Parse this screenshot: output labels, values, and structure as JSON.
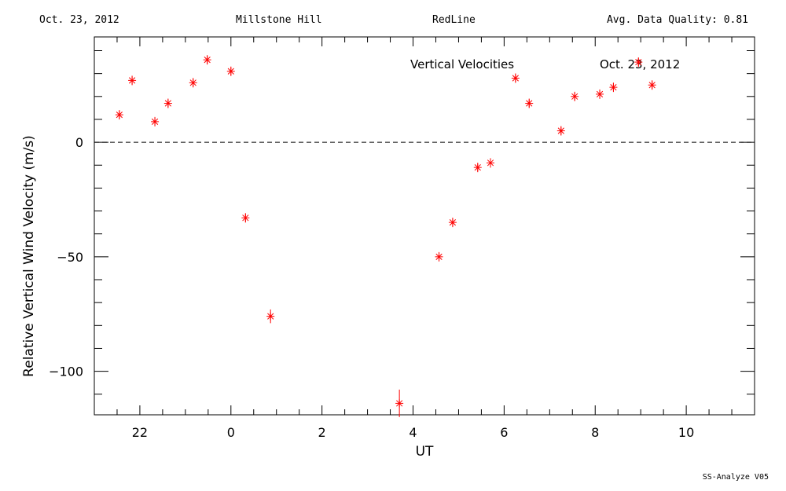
{
  "header": {
    "date": "Oct. 23, 2012",
    "site": "Millstone Hill",
    "instrument": "RedLine",
    "quality": "Avg. Data Quality: 0.81"
  },
  "footer": "SS-Analyze V05",
  "chart_data": {
    "type": "scatter",
    "title": "Vertical Velocities",
    "title_date": "Oct. 23, 2012",
    "xlabel": "UT",
    "ylabel": "Relative Vertical Wind Velocity  (m/s)",
    "x_tick_labels": [
      "22",
      "0",
      "2",
      "4",
      "6",
      "8",
      "10"
    ],
    "y_tick_labels": [
      "0",
      "−50",
      "−100"
    ],
    "xlim": [
      -25.0,
      -12.5
    ],
    "ylim": [
      -119,
      46
    ],
    "x_unit_note": "hours UT, x values expressed as hours relative to 24:00 (22 UT = -2)",
    "zero_line": true,
    "marker_color": "#ff0000",
    "series": [
      {
        "points": [
          {
            "x": -2.45,
            "y": 12,
            "err": 1
          },
          {
            "x": -2.17,
            "y": 27,
            "err": 1
          },
          {
            "x": -1.67,
            "y": 9,
            "err": 1
          },
          {
            "x": -1.38,
            "y": 17,
            "err": 1
          },
          {
            "x": -0.83,
            "y": 26,
            "err": 1
          },
          {
            "x": -0.52,
            "y": 36,
            "err": 1
          },
          {
            "x": 0.0,
            "y": 31,
            "err": 1
          },
          {
            "x": 0.32,
            "y": -33,
            "err": 1
          },
          {
            "x": 0.87,
            "y": -76,
            "err": 3
          },
          {
            "x": 3.7,
            "y": -114,
            "err": 6
          },
          {
            "x": 4.57,
            "y": -50,
            "err": 2
          },
          {
            "x": 4.87,
            "y": -35,
            "err": 1
          },
          {
            "x": 5.42,
            "y": -11,
            "err": 1
          },
          {
            "x": 5.7,
            "y": -9,
            "err": 1
          },
          {
            "x": 6.25,
            "y": 28,
            "err": 1
          },
          {
            "x": 6.55,
            "y": 17,
            "err": 1
          },
          {
            "x": 7.25,
            "y": 5,
            "err": 1
          },
          {
            "x": 7.55,
            "y": 20,
            "err": 1
          },
          {
            "x": 8.1,
            "y": 21,
            "err": 1
          },
          {
            "x": 8.4,
            "y": 24,
            "err": 1
          },
          {
            "x": 8.95,
            "y": 35,
            "err": 1
          },
          {
            "x": 9.25,
            "y": 25,
            "err": 1
          }
        ]
      }
    ]
  }
}
